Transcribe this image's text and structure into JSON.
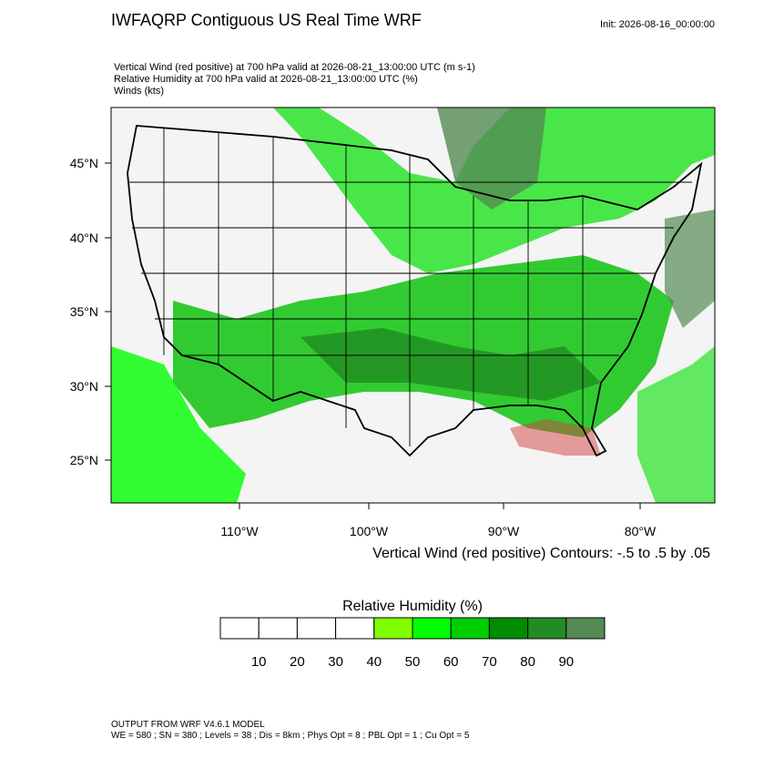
{
  "header": {
    "title": "IWFAQRP Contiguous US Real Time WRF",
    "init": "Init: 2026-08-16_00:00:00",
    "fields": [
      "Vertical Wind (red positive) at 700 hPa valid at 2026-08-21_13:00:00 UTC   (m s-1)",
      "Relative Humidity at 700 hPa valid at 2026-08-21_13:00:00 UTC   (%)",
      "Winds   (kts)"
    ]
  },
  "map": {
    "lat_labels": [
      "45°N",
      "40°N",
      "35°N",
      "30°N",
      "25°N"
    ],
    "lon_labels": [
      "110°W",
      "100°W",
      "90°W",
      "80°W"
    ]
  },
  "contour_info": "Vertical Wind (red positive) Contours: -.5 to .5 by .05",
  "colorbar": {
    "title": "Relative Humidity  (%)",
    "colors": [
      "#ffffff",
      "#ffffff",
      "#ffffff",
      "#ffffff",
      "#80ff00",
      "#00ff00",
      "#00cd00",
      "#008b00",
      "#228b22",
      "#548b54"
    ],
    "labels": [
      "10",
      "20",
      "30",
      "40",
      "50",
      "60",
      "70",
      "80",
      "90"
    ]
  },
  "footer": [
    "OUTPUT FROM WRF V4.6.1 MODEL",
    "WE = 580 ; SN = 380 ; Levels = 38 ; Dis = 8km ; Phys Opt = 8 ; PBL Opt = 1 ; Cu Opt = 5"
  ]
}
